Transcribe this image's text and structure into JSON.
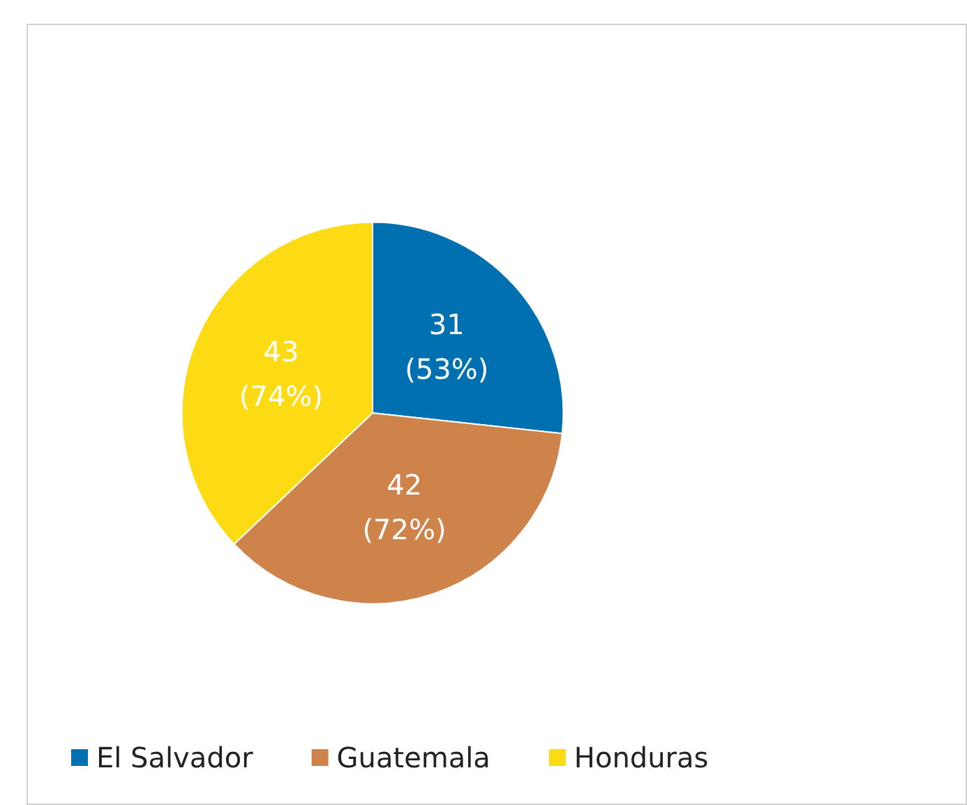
{
  "chart_data": {
    "type": "pie",
    "categories": [
      "El Salvador",
      "Guatemala",
      "Honduras"
    ],
    "values": [
      31,
      42,
      43
    ],
    "colors": [
      "#0070b0",
      "#cd834a",
      "#fcda14"
    ],
    "value_labels": [
      "31\n(53%)",
      "42\n(72%)",
      "43\n(74%)"
    ],
    "legend": "bottom left"
  }
}
